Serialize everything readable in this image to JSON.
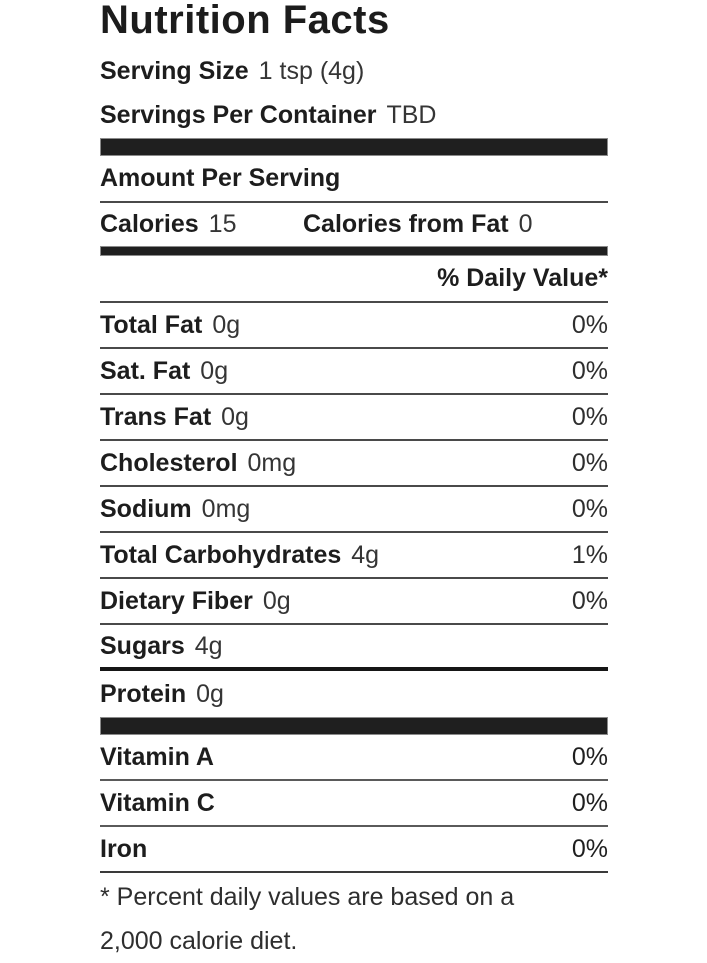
{
  "title": "Nutrition Facts",
  "serving": {
    "size_label": "Serving Size",
    "size_value": "1 tsp (4g)",
    "per_container_label": "Servings Per Container",
    "per_container_value": "TBD"
  },
  "amount_per_serving_label": "Amount Per Serving",
  "calories": {
    "label": "Calories",
    "value": "15",
    "from_fat_label": "Calories from Fat",
    "from_fat_value": "0"
  },
  "daily_value_header": "% Daily Value*",
  "nutrients": [
    {
      "label": "Total Fat",
      "amount": "0g",
      "dv": "0%"
    },
    {
      "label": "Sat. Fat",
      "amount": "0g",
      "dv": "0%"
    },
    {
      "label": "Trans Fat",
      "amount": "0g",
      "dv": "0%"
    },
    {
      "label": "Cholesterol",
      "amount": "0mg",
      "dv": "0%"
    },
    {
      "label": "Sodium",
      "amount": "0mg",
      "dv": "0%"
    },
    {
      "label": "Total Carbohydrates",
      "amount": "4g",
      "dv": "1%"
    },
    {
      "label": "Dietary Fiber",
      "amount": "0g",
      "dv": "0%"
    },
    {
      "label": "Sugars",
      "amount": "4g",
      "dv": ""
    },
    {
      "label": "Protein",
      "amount": "0g",
      "dv": ""
    }
  ],
  "vitamins": [
    {
      "label": "Vitamin A",
      "dv": "0%"
    },
    {
      "label": "Vitamin C",
      "dv": "0%"
    },
    {
      "label": "Iron",
      "dv": "0%"
    }
  ],
  "footnote": {
    "line1": "* Percent daily values are based on a",
    "line2": "2,000 calorie diet."
  },
  "colors": {
    "text": "#1f1f1f",
    "bar": "#1f1f1f",
    "separator": "#4a4a4a",
    "background": "#ffffff"
  }
}
